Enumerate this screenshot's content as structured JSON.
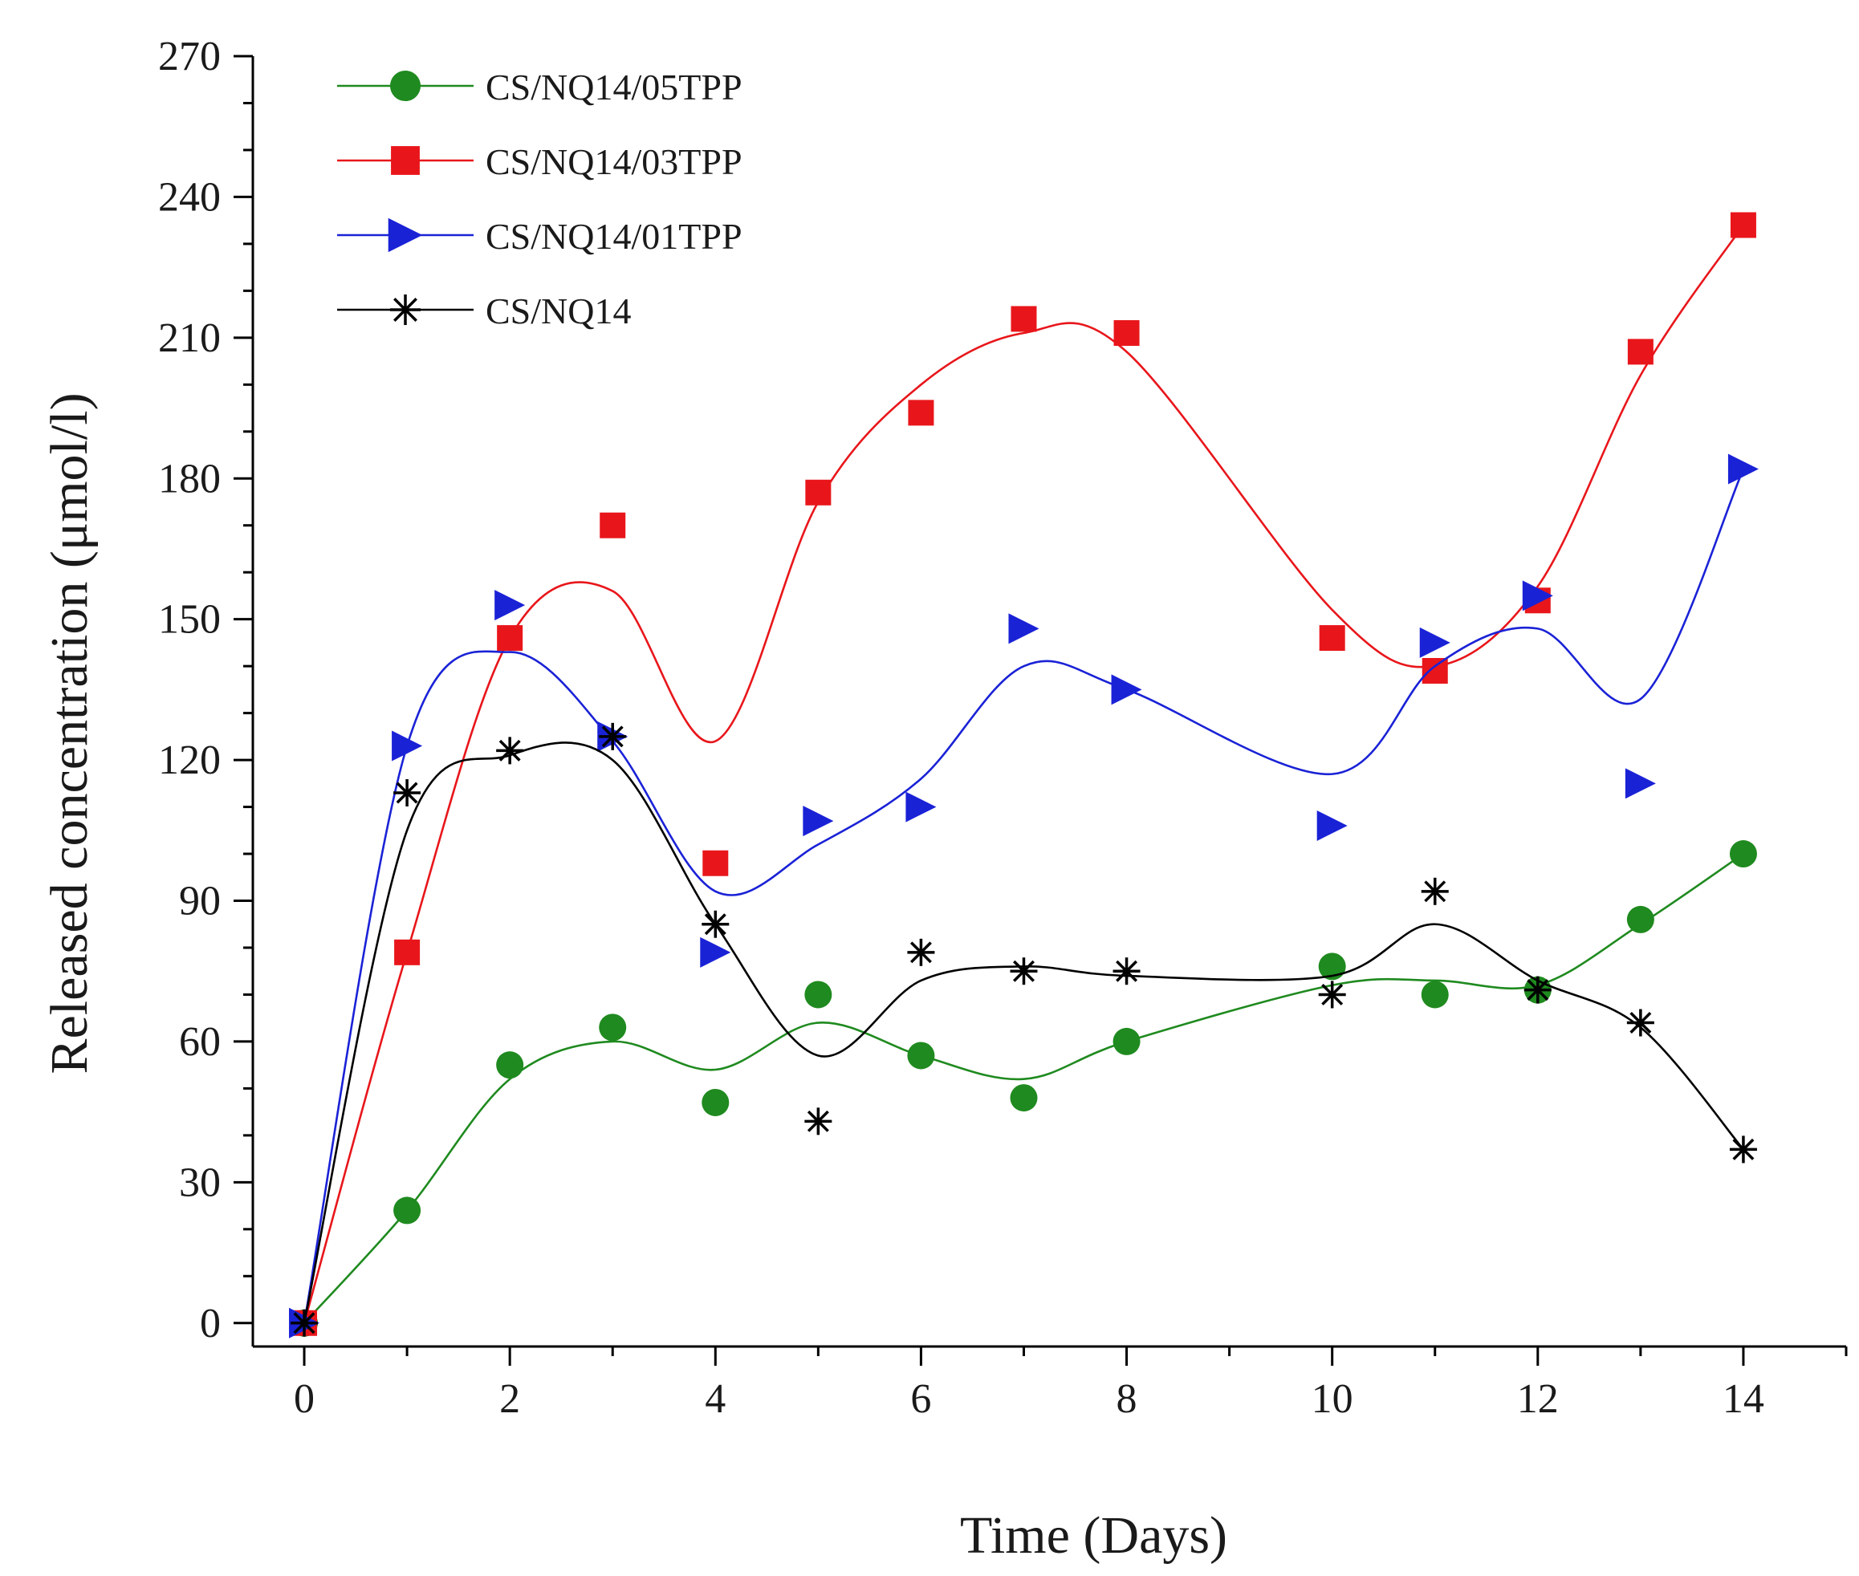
{
  "chart_data": {
    "type": "scatter",
    "title": "",
    "xlabel": "Time (Days)",
    "ylabel": "Released concentration (μmol/l)",
    "xlim": [
      -0.5,
      15
    ],
    "ylim": [
      -5,
      270
    ],
    "xticks": [
      0,
      2,
      4,
      6,
      8,
      10,
      12,
      14
    ],
    "xtick_labels": [
      "0",
      "2",
      "4",
      "6",
      "8",
      "10",
      "12",
      "14"
    ],
    "yticks": [
      0,
      30,
      60,
      90,
      120,
      150,
      180,
      210,
      240,
      270
    ],
    "ytick_labels": [
      "0",
      "30",
      "60",
      "90",
      "120",
      "150",
      "180",
      "210",
      "240",
      "270"
    ],
    "legend_position": "top-left",
    "x": [
      0,
      1,
      2,
      3,
      4,
      5,
      6,
      7,
      8,
      10,
      11,
      12,
      13,
      14
    ],
    "series": [
      {
        "name": "CS/NQ14/05TPP",
        "color": "#1f8a1f",
        "marker": "circle",
        "values": [
          0,
          24,
          55,
          63,
          47,
          70,
          57,
          48,
          60,
          76,
          70,
          71,
          86,
          100
        ],
        "fit": [
          0,
          24,
          52,
          60,
          54,
          64,
          57,
          52,
          60,
          72,
          73,
          72,
          85,
          100
        ]
      },
      {
        "name": "CS/NQ14/03TPP",
        "color": "#e8161b",
        "marker": "square",
        "values": [
          0,
          79,
          146,
          170,
          98,
          177,
          194,
          214,
          211,
          146,
          139,
          154,
          207,
          234
        ],
        "fit": [
          0,
          79,
          146,
          156,
          124,
          175,
          200,
          211,
          207,
          152,
          140,
          157,
          202,
          234
        ]
      },
      {
        "name": "CS/NQ14/01TPP",
        "color": "#1a22d6",
        "marker": "triangle-right",
        "values": [
          0,
          123,
          153,
          125,
          79,
          107,
          110,
          148,
          135,
          106,
          145,
          155,
          115,
          182
        ],
        "fit": [
          0,
          123,
          143,
          124,
          92,
          102,
          116,
          140,
          135,
          117,
          140,
          148,
          133,
          182
        ]
      },
      {
        "name": "CS/NQ14",
        "color": "#000000",
        "marker": "asterisk",
        "values": [
          0,
          113,
          122,
          125,
          85,
          43,
          79,
          75,
          75,
          70,
          92,
          71,
          64,
          37
        ],
        "fit": [
          0,
          105,
          121,
          120,
          85,
          57,
          73,
          76,
          74,
          74,
          85,
          73,
          63,
          37
        ]
      }
    ]
  }
}
